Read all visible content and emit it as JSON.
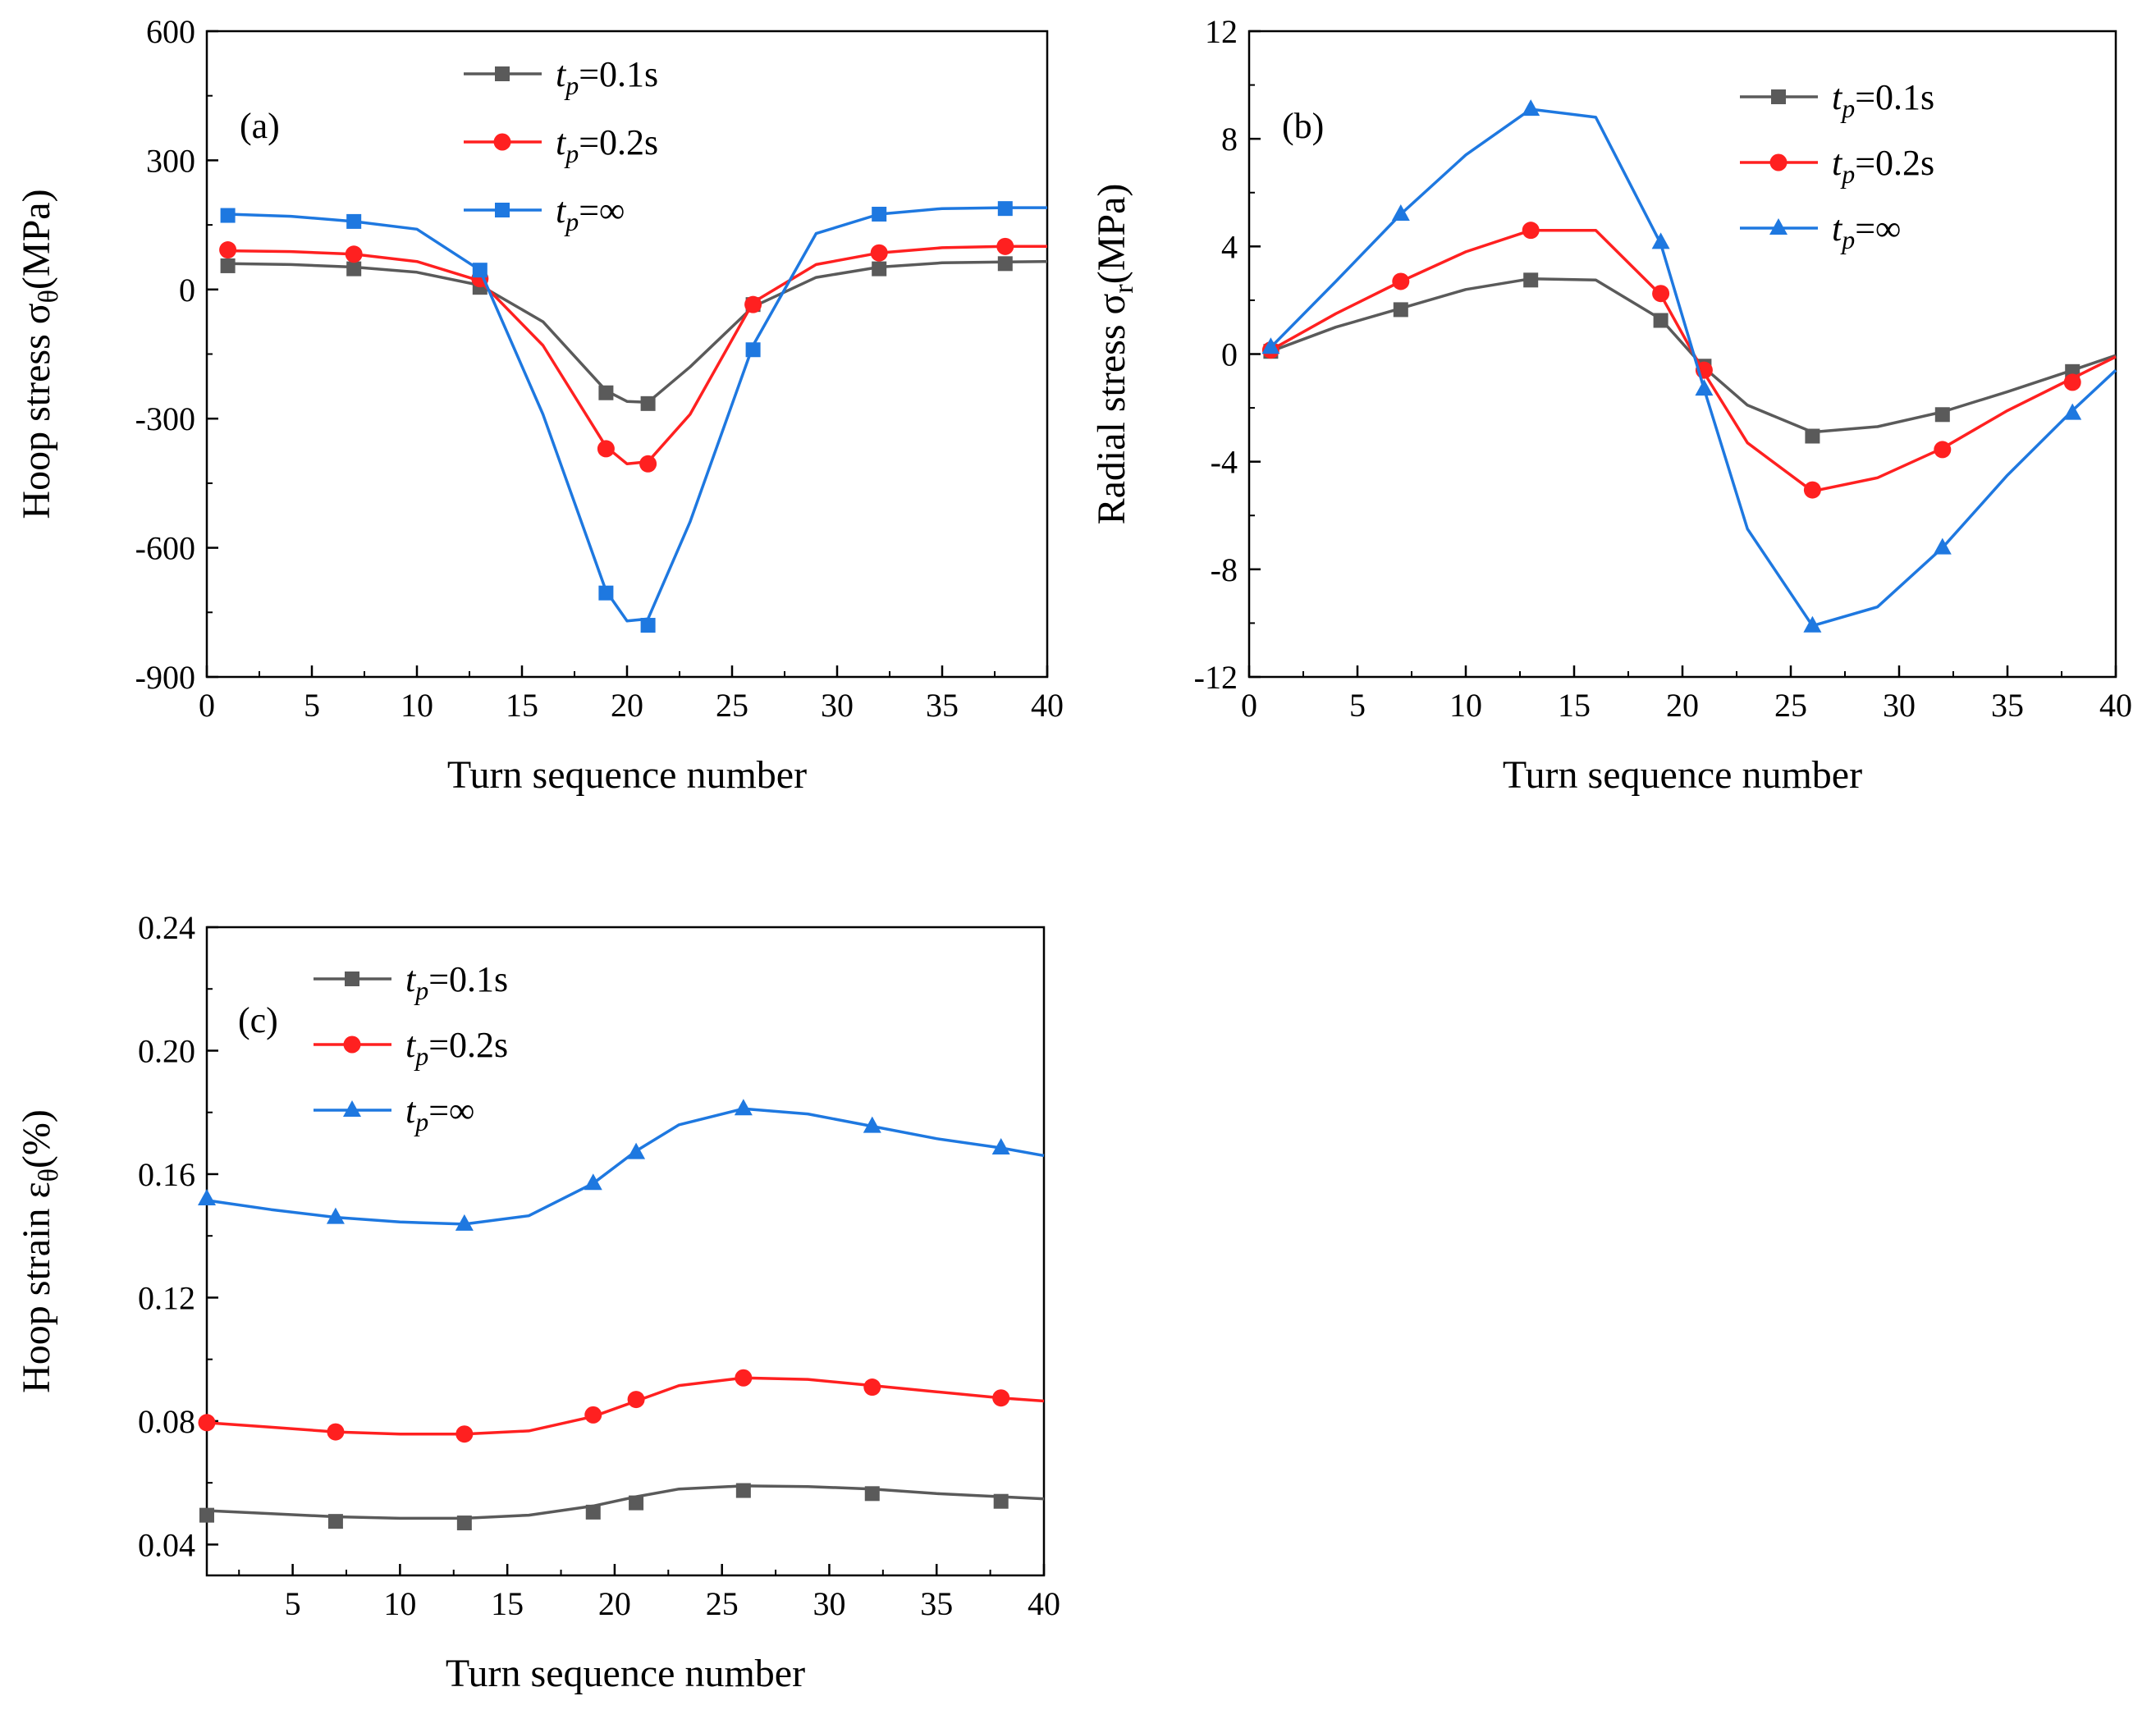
{
  "colors": {
    "gray": "#5a5a5a",
    "red": "#ff2020",
    "blue": "#1e78e0"
  },
  "chart_data": [
    {
      "panel": "a",
      "label": "(a)",
      "type": "line",
      "xlabel": "Turn sequence number",
      "ylabel": "Hoop stress σθ(MPa)",
      "ylabel_main": "Hoop stress ",
      "ylabel_sym": "σ",
      "ylabel_sub": "θ",
      "ylabel_unit": "(MPa)",
      "xlim": [
        0,
        40
      ],
      "ylim": [
        -900,
        600
      ],
      "xticks": [
        0,
        5,
        10,
        15,
        20,
        25,
        30,
        35,
        40
      ],
      "yticks": [
        -900,
        -600,
        -300,
        0,
        300,
        600
      ],
      "series": [
        {
          "name": "tp=0.1s",
          "legend_t": "t",
          "legend_sub": "p",
          "legend_rest": "=0.1s",
          "color": "gray",
          "marker": "square",
          "line": [
            [
              1,
              60
            ],
            [
              4,
              58
            ],
            [
              7,
              52
            ],
            [
              10,
              40
            ],
            [
              13,
              10
            ],
            [
              16,
              -75
            ],
            [
              19,
              -235
            ],
            [
              20,
              -260
            ],
            [
              21,
              -262
            ],
            [
              23,
              -180
            ],
            [
              26,
              -40
            ],
            [
              29,
              28
            ],
            [
              32,
              52
            ],
            [
              35,
              62
            ],
            [
              38,
              64
            ],
            [
              40,
              65
            ]
          ],
          "markers": [
            [
              1,
              55
            ],
            [
              7,
              48
            ],
            [
              13,
              5
            ],
            [
              19,
              -240
            ],
            [
              21,
              -265
            ],
            [
              26,
              -35
            ],
            [
              32,
              48
            ],
            [
              38,
              60
            ]
          ]
        },
        {
          "name": "tp=0.2s",
          "legend_t": "t",
          "legend_sub": "p",
          "legend_rest": "=0.2s",
          "color": "red",
          "marker": "circle",
          "line": [
            [
              1,
              90
            ],
            [
              4,
              88
            ],
            [
              7,
              82
            ],
            [
              10,
              65
            ],
            [
              13,
              20
            ],
            [
              16,
              -130
            ],
            [
              19,
              -365
            ],
            [
              20,
              -405
            ],
            [
              21,
              -400
            ],
            [
              23,
              -290
            ],
            [
              26,
              -30
            ],
            [
              29,
              58
            ],
            [
              32,
              85
            ],
            [
              35,
              97
            ],
            [
              38,
              100
            ],
            [
              40,
              100
            ]
          ],
          "markers": [
            [
              1,
              92
            ],
            [
              7,
              82
            ],
            [
              13,
              25
            ],
            [
              19,
              -370
            ],
            [
              21,
              -405
            ],
            [
              26,
              -35
            ],
            [
              32,
              85
            ],
            [
              38,
              100
            ]
          ]
        },
        {
          "name": "tp=∞",
          "legend_t": "t",
          "legend_sub": "p",
          "legend_rest": "=∞",
          "color": "blue",
          "marker": "square",
          "line": [
            [
              1,
              175
            ],
            [
              4,
              170
            ],
            [
              7,
              158
            ],
            [
              10,
              140
            ],
            [
              13,
              45
            ],
            [
              16,
              -290
            ],
            [
              19,
              -700
            ],
            [
              20,
              -770
            ],
            [
              21,
              -765
            ],
            [
              23,
              -540
            ],
            [
              26,
              -130
            ],
            [
              29,
              130
            ],
            [
              32,
              175
            ],
            [
              35,
              188
            ],
            [
              38,
              190
            ],
            [
              40,
              190
            ]
          ],
          "markers": [
            [
              1,
              172
            ],
            [
              7,
              158
            ],
            [
              13,
              45
            ],
            [
              19,
              -705
            ],
            [
              21,
              -780
            ],
            [
              26,
              -140
            ],
            [
              32,
              175
            ],
            [
              38,
              188
            ]
          ]
        }
      ]
    },
    {
      "panel": "b",
      "label": "(b)",
      "type": "line",
      "xlabel": "Turn sequence number",
      "ylabel": "Radial stress σr(MPa)",
      "ylabel_main": "Radial stress ",
      "ylabel_sym": "σ",
      "ylabel_sub": "r",
      "ylabel_unit": "(MPa)",
      "xlim": [
        0,
        40
      ],
      "ylim": [
        -12,
        12
      ],
      "xticks": [
        0,
        5,
        10,
        15,
        20,
        25,
        30,
        35,
        40
      ],
      "yticks": [
        -12,
        -8,
        -4,
        0,
        4,
        8,
        12
      ],
      "series": [
        {
          "name": "tp=0.1s",
          "legend_t": "t",
          "legend_sub": "p",
          "legend_rest": "=0.1s",
          "color": "gray",
          "marker": "square",
          "line": [
            [
              1,
              0.1
            ],
            [
              4,
              1.0
            ],
            [
              7,
              1.7
            ],
            [
              10,
              2.4
            ],
            [
              13,
              2.8
            ],
            [
              16,
              2.75
            ],
            [
              19,
              1.3
            ],
            [
              21,
              -0.5
            ],
            [
              23,
              -1.9
            ],
            [
              26,
              -2.9
            ],
            [
              29,
              -2.7
            ],
            [
              32,
              -2.15
            ],
            [
              35,
              -1.4
            ],
            [
              38,
              -0.6
            ],
            [
              40,
              -0.05
            ]
          ],
          "markers": [
            [
              1,
              0.1
            ],
            [
              7,
              1.65
            ],
            [
              13,
              2.75
            ],
            [
              19,
              1.25
            ],
            [
              21,
              -0.45
            ],
            [
              26,
              -3.05
            ],
            [
              32,
              -2.25
            ],
            [
              38,
              -0.65
            ]
          ]
        },
        {
          "name": "tp=0.2s",
          "legend_t": "t",
          "legend_sub": "p",
          "legend_rest": "=0.2s",
          "color": "red",
          "marker": "circle",
          "line": [
            [
              1,
              0.15
            ],
            [
              4,
              1.5
            ],
            [
              7,
              2.7
            ],
            [
              10,
              3.8
            ],
            [
              13,
              4.6
            ],
            [
              16,
              4.6
            ],
            [
              19,
              2.2
            ],
            [
              21,
              -0.7
            ],
            [
              23,
              -3.3
            ],
            [
              26,
              -5.1
            ],
            [
              29,
              -4.6
            ],
            [
              32,
              -3.5
            ],
            [
              35,
              -2.1
            ],
            [
              38,
              -0.9
            ],
            [
              40,
              -0.1
            ]
          ],
          "markers": [
            [
              1,
              0.15
            ],
            [
              7,
              2.7
            ],
            [
              13,
              4.6
            ],
            [
              19,
              2.25
            ],
            [
              21,
              -0.6
            ],
            [
              26,
              -5.05
            ],
            [
              32,
              -3.55
            ],
            [
              38,
              -1.05
            ]
          ]
        },
        {
          "name": "tp=∞",
          "legend_t": "t",
          "legend_sub": "p",
          "legend_rest": "=∞",
          "color": "blue",
          "marker": "triangle",
          "line": [
            [
              1,
              0.25
            ],
            [
              4,
              2.7
            ],
            [
              7,
              5.2
            ],
            [
              10,
              7.4
            ],
            [
              13,
              9.1
            ],
            [
              16,
              8.8
            ],
            [
              19,
              4.1
            ],
            [
              21,
              -1.3
            ],
            [
              23,
              -6.5
            ],
            [
              26,
              -10.1
            ],
            [
              29,
              -9.4
            ],
            [
              32,
              -7.2
            ],
            [
              35,
              -4.5
            ],
            [
              38,
              -2.1
            ],
            [
              40,
              -0.6
            ]
          ],
          "markers": [
            [
              1,
              0.25
            ],
            [
              7,
              5.2
            ],
            [
              13,
              9.1
            ],
            [
              19,
              4.15
            ],
            [
              21,
              -1.3
            ],
            [
              26,
              -10.1
            ],
            [
              32,
              -7.2
            ],
            [
              38,
              -2.2
            ]
          ]
        }
      ]
    },
    {
      "panel": "c",
      "label": "(c)",
      "type": "line",
      "xlabel": "Turn sequence number",
      "ylabel": "Hoop strain εθ(%)",
      "ylabel_main": "Hoop strain ",
      "ylabel_sym": "ε",
      "ylabel_sub": "θ",
      "ylabel_unit": "(%)",
      "xlim": [
        1,
        40
      ],
      "ylim": [
        0.03,
        0.24
      ],
      "xticks": [
        5,
        10,
        15,
        20,
        25,
        30,
        35,
        40
      ],
      "yticks": [
        0.04,
        0.08,
        0.12,
        0.16,
        0.2,
        0.24
      ],
      "ytick_labels": [
        "0.04",
        "0.08",
        "0.12",
        "0.16",
        "0.20",
        "0.24"
      ],
      "series": [
        {
          "name": "tp=0.1s",
          "legend_t": "t",
          "legend_sub": "p",
          "legend_rest": "=0.1s",
          "color": "gray",
          "marker": "square",
          "line": [
            [
              1,
              0.051
            ],
            [
              4,
              0.05
            ],
            [
              7,
              0.049
            ],
            [
              10,
              0.0485
            ],
            [
              13,
              0.0485
            ],
            [
              16,
              0.0495
            ],
            [
              19,
              0.0525
            ],
            [
              21,
              0.0555
            ],
            [
              23,
              0.058
            ],
            [
              26,
              0.059
            ],
            [
              29,
              0.0588
            ],
            [
              32,
              0.058
            ],
            [
              35,
              0.0565
            ],
            [
              38,
              0.0555
            ],
            [
              40,
              0.0548
            ]
          ],
          "markers": [
            [
              1,
              0.0495
            ],
            [
              7,
              0.0475
            ],
            [
              13,
              0.047
            ],
            [
              19,
              0.0505
            ],
            [
              21,
              0.0535
            ],
            [
              26,
              0.0575
            ],
            [
              32,
              0.0565
            ],
            [
              38,
              0.054
            ]
          ]
        },
        {
          "name": "tp=0.2s",
          "legend_t": "t",
          "legend_sub": "p",
          "legend_rest": "=0.2s",
          "color": "red",
          "marker": "circle",
          "line": [
            [
              1,
              0.0795
            ],
            [
              4,
              0.078
            ],
            [
              7,
              0.0765
            ],
            [
              10,
              0.0758
            ],
            [
              13,
              0.0758
            ],
            [
              16,
              0.0768
            ],
            [
              19,
              0.0815
            ],
            [
              21,
              0.0865
            ],
            [
              23,
              0.0915
            ],
            [
              26,
              0.094
            ],
            [
              29,
              0.0935
            ],
            [
              32,
              0.0915
            ],
            [
              35,
              0.0895
            ],
            [
              38,
              0.0875
            ],
            [
              40,
              0.0865
            ]
          ],
          "markers": [
            [
              1,
              0.0795
            ],
            [
              7,
              0.0765
            ],
            [
              13,
              0.0758
            ],
            [
              19,
              0.082
            ],
            [
              21,
              0.087
            ],
            [
              26,
              0.094
            ],
            [
              32,
              0.091
            ],
            [
              38,
              0.0875
            ]
          ]
        },
        {
          "name": "tp=∞",
          "legend_t": "t",
          "legend_sub": "p",
          "legend_rest": "=∞",
          "color": "blue",
          "marker": "triangle",
          "line": [
            [
              1,
              0.1515
            ],
            [
              4,
              0.1485
            ],
            [
              7,
              0.146
            ],
            [
              10,
              0.1445
            ],
            [
              13,
              0.1438
            ],
            [
              16,
              0.1465
            ],
            [
              19,
              0.157
            ],
            [
              21,
              0.1675
            ],
            [
              23,
              0.176
            ],
            [
              26,
              0.1812
            ],
            [
              29,
              0.1795
            ],
            [
              32,
              0.1755
            ],
            [
              35,
              0.1715
            ],
            [
              38,
              0.1685
            ],
            [
              40,
              0.166
            ]
          ],
          "markers": [
            [
              1,
              0.152
            ],
            [
              7,
              0.146
            ],
            [
              13,
              0.1438
            ],
            [
              19,
              0.157
            ],
            [
              21,
              0.167
            ],
            [
              26,
              0.1812
            ],
            [
              32,
              0.1755
            ],
            [
              38,
              0.1685
            ]
          ]
        }
      ]
    }
  ]
}
